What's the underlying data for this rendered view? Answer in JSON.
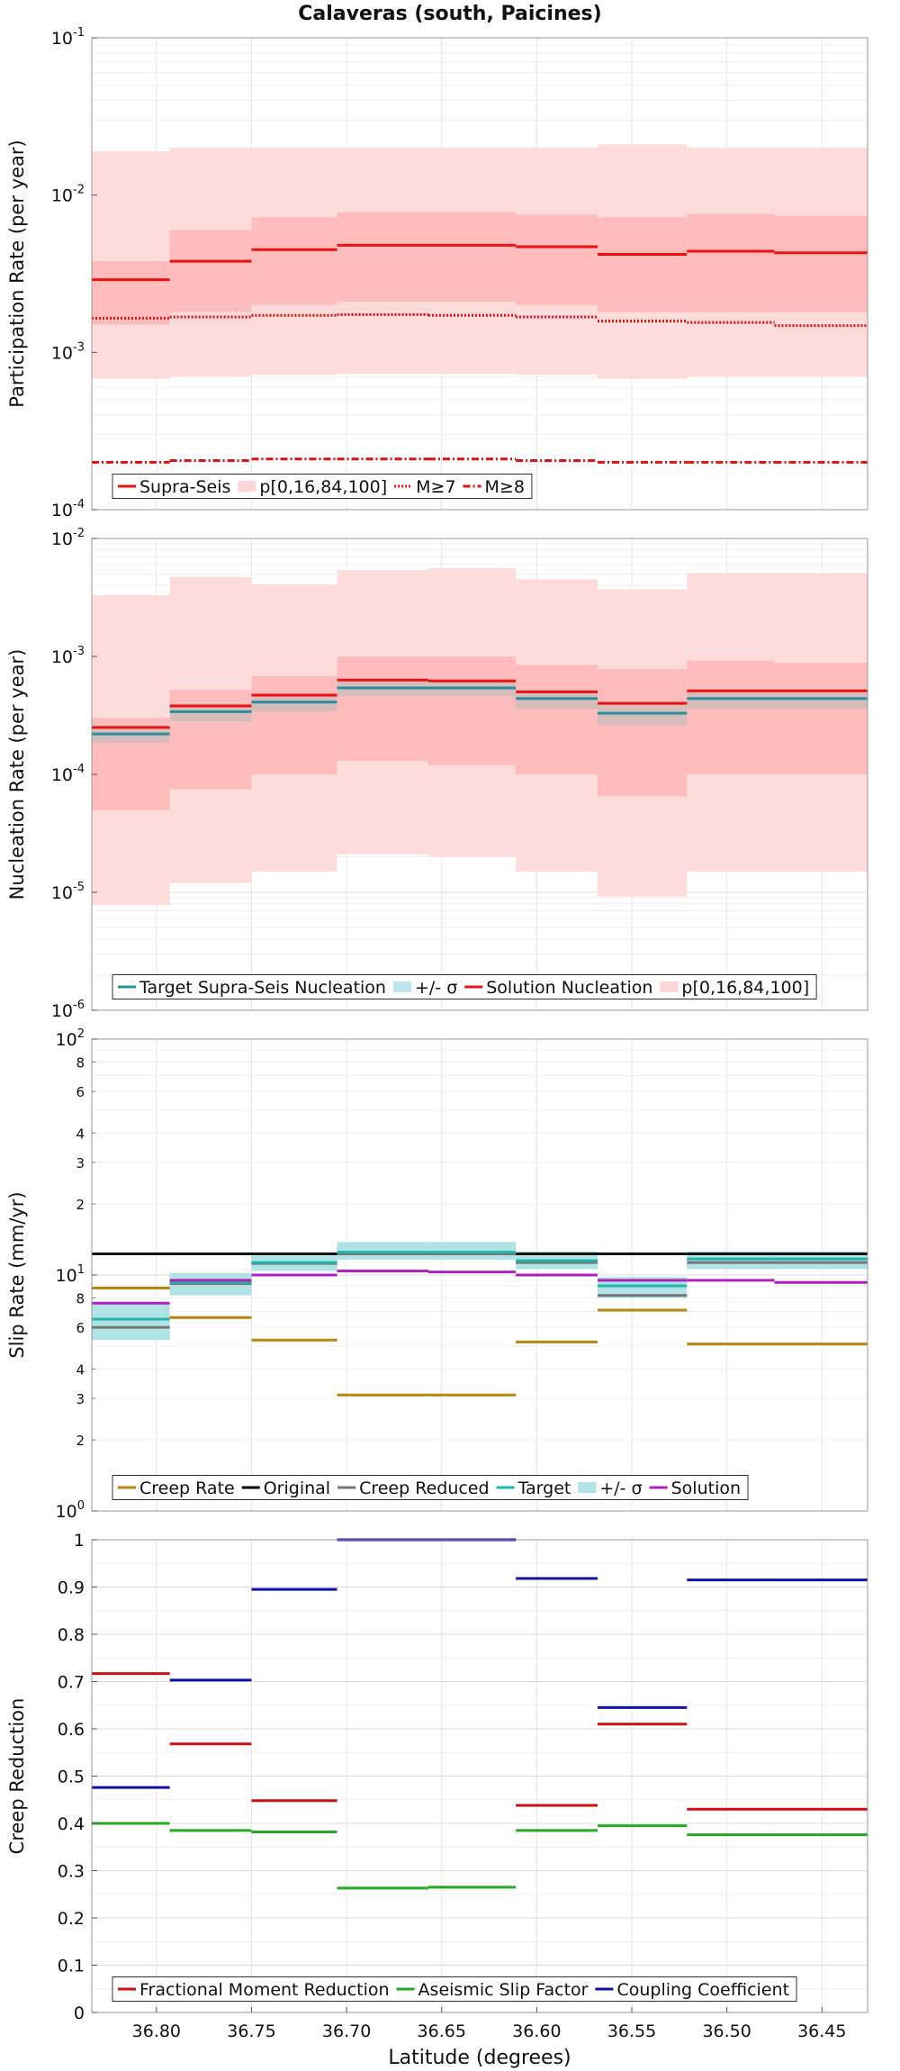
{
  "title": "Calaveras (south, Paicines)",
  "chart_data": [
    {
      "id": "participation",
      "type": "line",
      "scale": "log",
      "ylabel": "Participation Rate (per year)",
      "ylim": [
        0.0001,
        0.1
      ],
      "yticks": [
        {
          "v": 0.1,
          "b": "10",
          "e": "-1"
        },
        {
          "v": 0.01,
          "b": "10",
          "e": "-2"
        },
        {
          "v": 0.001,
          "b": "10",
          "e": "-3"
        },
        {
          "v": 0.0001,
          "b": "10",
          "e": "-4"
        }
      ],
      "legend": {
        "position": "bottom-left",
        "entries": [
          {
            "label": "Supra-Seis",
            "color": "#ee1111",
            "style": "solid"
          },
          {
            "label": "p[0,16,84,100]",
            "color": "#ffd6d6",
            "style": "box"
          },
          {
            "label": "M≥7",
            "color": "#dd1111",
            "style": "dotted"
          },
          {
            "label": "M≥8",
            "color": "#dd1111",
            "style": "dashdot"
          }
        ]
      },
      "bands": [
        {
          "color": "#ffdcdc",
          "lo": [
            0.00068,
            0.0007,
            0.00072,
            0.00073,
            0.00073,
            0.00072,
            0.00068,
            0.0007,
            0.0007
          ],
          "hi": [
            0.019,
            0.02,
            0.02,
            0.02,
            0.02,
            0.02,
            0.021,
            0.02,
            0.02
          ]
        },
        {
          "color": "#ffbcbc",
          "lo": [
            0.0015,
            0.0018,
            0.002,
            0.0021,
            0.0021,
            0.002,
            0.0018,
            0.0018,
            0.0018
          ],
          "hi": [
            0.0038,
            0.006,
            0.0072,
            0.0078,
            0.0078,
            0.0075,
            0.0072,
            0.0076,
            0.0074
          ]
        }
      ],
      "series": [
        {
          "name": "Supra-Seis",
          "color": "#ee1111",
          "style": "solid",
          "values": [
            0.0029,
            0.0038,
            0.0045,
            0.0048,
            0.0048,
            0.0047,
            0.0042,
            0.0044,
            0.0043
          ]
        },
        {
          "name": "M≥7",
          "color": "#dd1111",
          "style": "dotted",
          "values": [
            0.00165,
            0.00168,
            0.00172,
            0.00174,
            0.00172,
            0.00168,
            0.00158,
            0.00155,
            0.00148
          ]
        },
        {
          "name": "M≥8",
          "color": "#dd1111",
          "style": "dashdot",
          "values": [
            0.0002,
            0.000205,
            0.00021,
            0.00021,
            0.00021,
            0.000205,
            0.0002,
            0.0002,
            0.0002
          ]
        }
      ]
    },
    {
      "id": "nucleation",
      "type": "line",
      "scale": "log",
      "ylabel": "Nucleation Rate (per year)",
      "ylim": [
        1e-06,
        0.01
      ],
      "yticks": [
        {
          "v": 0.01,
          "b": "10",
          "e": "-2"
        },
        {
          "v": 0.001,
          "b": "10",
          "e": "-3"
        },
        {
          "v": 0.0001,
          "b": "10",
          "e": "-4"
        },
        {
          "v": 1e-05,
          "b": "10",
          "e": "-5"
        },
        {
          "v": 1e-06,
          "b": "10",
          "e": "-6"
        }
      ],
      "legend": {
        "position": "bottom-left",
        "entries": [
          {
            "label": "Target Supra-Seis Nucleation",
            "color": "#2a8f9c",
            "style": "solid"
          },
          {
            "label": "+/- σ",
            "color": "#bfe6ea",
            "style": "box"
          },
          {
            "label": "Solution Nucleation",
            "color": "#ee1111",
            "style": "solid"
          },
          {
            "label": "p[0,16,84,100]",
            "color": "#ffd6d6",
            "style": "box"
          }
        ]
      },
      "bands": [
        {
          "color": "#ffdcdc",
          "lo": [
            7.8e-06,
            1.2e-05,
            1.5e-05,
            2.1e-05,
            2e-05,
            1.5e-05,
            9.2e-06,
            1.5e-05,
            1.5e-05
          ],
          "hi": [
            0.0033,
            0.0047,
            0.0041,
            0.0054,
            0.0056,
            0.0045,
            0.0037,
            0.0051,
            0.0051
          ]
        },
        {
          "color": "#ffbcbc",
          "lo": [
            5e-05,
            7.5e-05,
            0.0001,
            0.00013,
            0.00012,
            0.0001,
            6.5e-05,
            0.0001,
            0.0001
          ],
          "hi": [
            0.0003,
            0.00052,
            0.00068,
            0.001,
            0.001,
            0.00085,
            0.00078,
            0.00092,
            0.00088
          ]
        },
        {
          "color": "#bdbdbd",
          "opacity": 0.6,
          "lo": [
            0.000185,
            0.00028,
            0.00034,
            0.00046,
            0.00046,
            0.00036,
            0.00026,
            0.00036,
            0.00036
          ],
          "hi": [
            0.00026,
            0.0004,
            0.00048,
            0.00062,
            0.00062,
            0.00052,
            0.00042,
            0.00052,
            0.00052
          ]
        }
      ],
      "series": [
        {
          "name": "Target Supra-Seis Nucleation",
          "color": "#2a8f9c",
          "style": "solid",
          "values": [
            0.00022,
            0.00034,
            0.00041,
            0.00054,
            0.00054,
            0.00044,
            0.00033,
            0.00044,
            0.00044
          ]
        },
        {
          "name": "Solution Nucleation",
          "color": "#ee1111",
          "style": "solid",
          "values": [
            0.00025,
            0.00038,
            0.00047,
            0.00063,
            0.00062,
            0.0005,
            0.0004,
            0.00051,
            0.00051
          ]
        }
      ]
    },
    {
      "id": "slip",
      "type": "line",
      "scale": "log",
      "ylabel": "Slip Rate (mm/yr)",
      "ylim": [
        1,
        100
      ],
      "yticks": [
        {
          "v": 100,
          "b": "10",
          "e": "2"
        },
        {
          "v": 10,
          "b": "10",
          "e": "1"
        },
        {
          "v": 1,
          "b": "10",
          "e": "0"
        }
      ],
      "minorTicks": [
        2,
        3,
        4,
        6,
        8,
        20,
        30,
        40,
        60,
        80
      ],
      "legend": {
        "position": "bottom-left",
        "entries": [
          {
            "label": "Creep Rate",
            "color": "#b8860b",
            "style": "solid"
          },
          {
            "label": "Original",
            "color": "#000000",
            "style": "solid"
          },
          {
            "label": "Creep Reduced",
            "color": "#777777",
            "style": "solid"
          },
          {
            "label": "Target",
            "color": "#1fb5a8",
            "style": "solid"
          },
          {
            "label": "+/- σ",
            "color": "#b0e2e6",
            "style": "box"
          },
          {
            "label": "Solution",
            "color": "#b020c0",
            "style": "solid"
          }
        ]
      },
      "bands": [
        {
          "color": "#b0e2e6",
          "lo": [
            5.3,
            8.2,
            10.4,
            11.6,
            11.6,
            10.6,
            8,
            10.6,
            10.6
          ],
          "hi": [
            7.6,
            10.2,
            12.4,
            13.8,
            13.8,
            12.6,
            9.8,
            12.6,
            12.6
          ]
        }
      ],
      "series": [
        {
          "name": "Original",
          "color": "#111111",
          "style": "solid",
          "values": [
            12.3,
            12.3,
            12.3,
            12.3,
            12.3,
            12.3,
            12.3,
            12.3,
            12.3
          ]
        },
        {
          "name": "Creep Reduced",
          "color": "#777777",
          "style": "solid",
          "values": [
            6,
            9.2,
            11.2,
            12.3,
            12.3,
            11.3,
            8.2,
            11.3,
            11.3
          ]
        },
        {
          "name": "Target",
          "color": "#1fb5a8",
          "style": "solid",
          "values": [
            6.5,
            9.3,
            11.3,
            12.5,
            12.5,
            11.5,
            9,
            11.7,
            11.7
          ]
        },
        {
          "name": "Solution",
          "color": "#b020c0",
          "style": "solid",
          "values": [
            7.6,
            9.5,
            10,
            10.4,
            10.3,
            10,
            9.5,
            9.5,
            9.3
          ]
        },
        {
          "name": "Creep Rate",
          "color": "#b8860b",
          "style": "solid",
          "values": [
            8.8,
            6.6,
            5.3,
            3.1,
            3.1,
            5.2,
            7.1,
            5.1,
            5.1
          ]
        }
      ]
    },
    {
      "id": "creep",
      "type": "line",
      "scale": "linear",
      "ylabel": "Creep Reduction",
      "ylim": [
        0,
        1
      ],
      "yticks": [
        {
          "v": 0,
          "t": "0"
        },
        {
          "v": 0.1,
          "t": "0.1"
        },
        {
          "v": 0.2,
          "t": "0.2"
        },
        {
          "v": 0.3,
          "t": "0.3"
        },
        {
          "v": 0.4,
          "t": "0.4"
        },
        {
          "v": 0.5,
          "t": "0.5"
        },
        {
          "v": 0.6,
          "t": "0.6"
        },
        {
          "v": 0.7,
          "t": "0.7"
        },
        {
          "v": 0.8,
          "t": "0.8"
        },
        {
          "v": 0.9,
          "t": "0.9"
        },
        {
          "v": 1,
          "t": "1"
        }
      ],
      "legend": {
        "position": "bottom-left",
        "entries": [
          {
            "label": "Fractional Moment Reduction",
            "color": "#cc1111",
            "style": "solid"
          },
          {
            "label": "Aseismic Slip Factor",
            "color": "#22aa22",
            "style": "solid"
          },
          {
            "label": "Coupling Coefficient",
            "color": "#1111aa",
            "style": "solid"
          }
        ]
      },
      "bands": [],
      "series": [
        {
          "name": "Fractional Moment Reduction",
          "color": "#cc1111",
          "style": "solid",
          "values": [
            0.717,
            0.568,
            0.448,
            null,
            null,
            0.438,
            0.61,
            0.43,
            0.43
          ]
        },
        {
          "name": "Aseismic Slip Factor",
          "color": "#22aa22",
          "style": "solid",
          "values": [
            0.4,
            0.385,
            0.382,
            0.263,
            0.265,
            0.385,
            0.395,
            0.376,
            0.376
          ]
        },
        {
          "name": "Coupling Coefficient",
          "color": "#1111aa",
          "style": "solid",
          "values": [
            0.476,
            0.703,
            0.895,
            1,
            1,
            0.918,
            0.645,
            0.915,
            0.915
          ]
        }
      ]
    }
  ],
  "x_axis": {
    "xlabel": "Latitude (degrees)",
    "xlim": [
      36.834,
      36.426
    ],
    "ticks": [
      {
        "v": 36.8,
        "t": "36.80"
      },
      {
        "v": 36.75,
        "t": "36.75"
      },
      {
        "v": 36.7,
        "t": "36.70"
      },
      {
        "v": 36.65,
        "t": "36.65"
      },
      {
        "v": 36.6,
        "t": "36.60"
      },
      {
        "v": 36.55,
        "t": "36.55"
      },
      {
        "v": 36.5,
        "t": "36.50"
      },
      {
        "v": 36.45,
        "t": "36.45"
      }
    ],
    "segment_bounds": [
      36.834,
      36.793,
      36.75,
      36.705,
      36.657,
      36.611,
      36.568,
      36.521,
      36.475,
      36.426
    ]
  }
}
